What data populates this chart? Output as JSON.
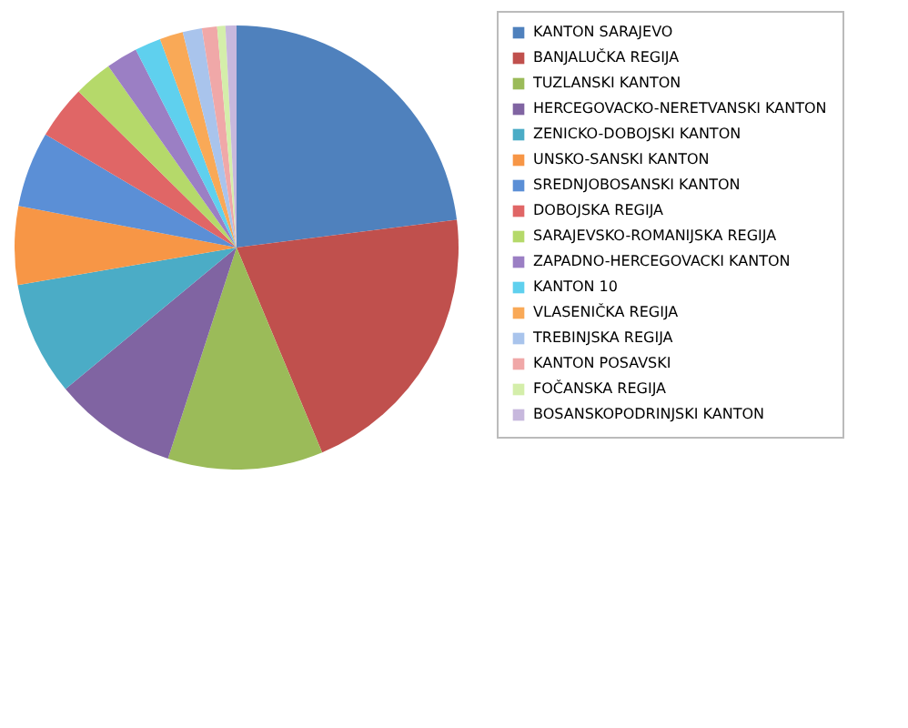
{
  "chart_data": {
    "type": "pie",
    "categories": [
      "KANTON SARAJEVO",
      "BANJALUČKA REGIJA",
      "TUZLANSKI KANTON",
      "HERCEGOVACKO-NERETVANSKI KANTON",
      "ZENICKO-DOBOJSKI KANTON",
      "UNSKO-SANSKI KANTON",
      "SREDNJOBOSANSKI KANTON",
      "DOBOJSKA REGIJA",
      "SARAJEVSKO-ROMANIJSKA REGIJA",
      "ZAPADNO-HERCEGOVACKI KANTON",
      "KANTON 10",
      "VLASENIČKA REGIJA",
      "TREBINJSKA REGIJA",
      "KANTON POSAVSKI",
      "FOČANSKA REGIJA",
      "BOSANSKOPODRINJSKI KANTON"
    ],
    "values": [
      23,
      20.7,
      11.3,
      9,
      8.3,
      5.7,
      5.5,
      3.9,
      2.8,
      2.3,
      1.9,
      1.7,
      1.4,
      1.1,
      0.6,
      0.8
    ],
    "colors": [
      "#4f81bd",
      "#c0504d",
      "#9bbb59",
      "#8064a2",
      "#4bacc6",
      "#f79646",
      "#5b8fd6",
      "#e06666",
      "#b5d96a",
      "#9b7fc4",
      "#5fd0ee",
      "#f9a957",
      "#a9c4ec",
      "#f0a8a8",
      "#d4eeaa",
      "#c7b8dd"
    ],
    "legend": "right"
  }
}
